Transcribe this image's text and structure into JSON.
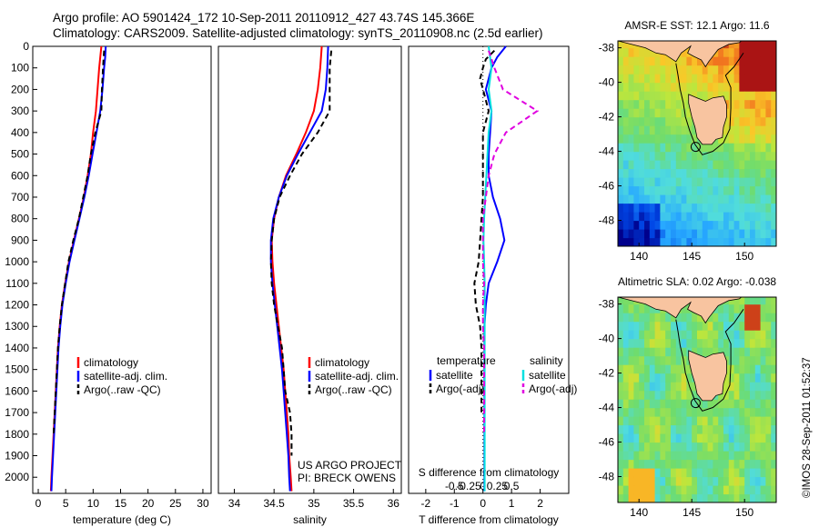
{
  "header": {
    "title_line1": "Argo profile: AO 5901424_172 10-Sep-2011 20110912_427 43.74S 145.366E",
    "title_line2": "Climatology: CARS2009. Satellite-adjusted climatology: synTS_20110908.nc (2.5d earlier)"
  },
  "side_stamp": "©IMOS 28-Sep-2011 01:52:37",
  "colors": {
    "climatology": "#ff0000",
    "satellite": "#0000ff",
    "argo": "#000000",
    "s_satellite": "#00e0e0",
    "s_argo": "#e000e0",
    "land": "#f8c4a0"
  },
  "chart_data": [
    {
      "type": "line",
      "id": "temperature",
      "xlabel": "temperature (deg C)",
      "xlim": [
        -1,
        31.5
      ],
      "ylim": [
        0,
        2075
      ],
      "y_reversed": true,
      "xticks": [
        0,
        5,
        10,
        15,
        20,
        25,
        30
      ],
      "yticks": [
        0,
        100,
        200,
        300,
        400,
        500,
        600,
        700,
        800,
        900,
        1000,
        1100,
        1200,
        1300,
        1400,
        1500,
        1600,
        1700,
        1800,
        1900,
        2000
      ],
      "legend": {
        "placement": "bottom-left",
        "entries": [
          "climatology",
          "satellite-adj. clim.",
          "Argo(..raw -QC)"
        ]
      },
      "series": [
        {
          "name": "climatology",
          "color": "#ff0000",
          "dash": false,
          "points": [
            [
              11.5,
              0
            ],
            [
              11.3,
              50
            ],
            [
              11.1,
              100
            ],
            [
              10.8,
              200
            ],
            [
              10.5,
              300
            ],
            [
              10.0,
              400
            ],
            [
              9.6,
              500
            ],
            [
              9.0,
              600
            ],
            [
              8.3,
              700
            ],
            [
              7.4,
              800
            ],
            [
              6.5,
              900
            ],
            [
              5.6,
              1000
            ],
            [
              4.9,
              1100
            ],
            [
              4.3,
              1200
            ],
            [
              3.9,
              1300
            ],
            [
              3.6,
              1400
            ],
            [
              3.4,
              1500
            ],
            [
              3.2,
              1600
            ],
            [
              3.0,
              1700
            ],
            [
              2.8,
              1800
            ],
            [
              2.6,
              1900
            ],
            [
              2.4,
              2000
            ],
            [
              2.3,
              2065
            ]
          ]
        },
        {
          "name": "satellite-adj. clim.",
          "color": "#0000ff",
          "dash": false,
          "points": [
            [
              12.3,
              0
            ],
            [
              12.2,
              50
            ],
            [
              12.0,
              100
            ],
            [
              11.7,
              200
            ],
            [
              11.3,
              300
            ],
            [
              10.6,
              400
            ],
            [
              9.9,
              500
            ],
            [
              9.2,
              600
            ],
            [
              8.4,
              700
            ],
            [
              7.5,
              800
            ],
            [
              6.6,
              900
            ],
            [
              5.7,
              1000
            ],
            [
              5.0,
              1100
            ],
            [
              4.4,
              1200
            ],
            [
              4.0,
              1300
            ],
            [
              3.7,
              1400
            ],
            [
              3.5,
              1500
            ],
            [
              3.3,
              1600
            ],
            [
              3.1,
              1700
            ],
            [
              2.9,
              1800
            ],
            [
              2.7,
              1900
            ],
            [
              2.5,
              2000
            ],
            [
              2.4,
              2065
            ]
          ]
        },
        {
          "name": "Argo(..raw -QC)",
          "color": "#000000",
          "dash": true,
          "points": [
            [
              12.0,
              20
            ],
            [
              11.9,
              60
            ],
            [
              11.8,
              100
            ],
            [
              11.6,
              200
            ],
            [
              11.5,
              300
            ],
            [
              10.4,
              400
            ],
            [
              9.6,
              500
            ],
            [
              9.0,
              600
            ],
            [
              8.2,
              700
            ],
            [
              7.4,
              800
            ],
            [
              6.4,
              900
            ],
            [
              5.5,
              1000
            ],
            [
              4.9,
              1100
            ],
            [
              4.3,
              1200
            ],
            [
              3.9,
              1300
            ],
            [
              3.6,
              1400
            ],
            [
              3.4,
              1500
            ],
            [
              3.2,
              1600
            ],
            [
              3.0,
              1700
            ],
            [
              2.8,
              1800
            ]
          ]
        }
      ]
    },
    {
      "type": "line",
      "id": "salinity",
      "xlabel": "salinity",
      "xlim": [
        33.8,
        36.1
      ],
      "ylim": [
        0,
        2075
      ],
      "y_reversed": true,
      "xticks": [
        34,
        34.5,
        35,
        35.5,
        36
      ],
      "legend": {
        "placement": "bottom-right",
        "entries": [
          "climatology",
          "satellite-adj. clim.",
          "Argo(..raw -QC)"
        ]
      },
      "annotation": [
        "US ARGO PROJECT",
        "PI: BRECK OWENS"
      ],
      "series": [
        {
          "name": "climatology",
          "color": "#ff0000",
          "dash": false,
          "points": [
            [
              35.1,
              0
            ],
            [
              35.08,
              100
            ],
            [
              35.05,
              200
            ],
            [
              35.0,
              300
            ],
            [
              34.9,
              400
            ],
            [
              34.78,
              500
            ],
            [
              34.65,
              600
            ],
            [
              34.56,
              700
            ],
            [
              34.5,
              800
            ],
            [
              34.47,
              900
            ],
            [
              34.48,
              1000
            ],
            [
              34.5,
              1100
            ],
            [
              34.53,
              1200
            ],
            [
              34.56,
              1300
            ],
            [
              34.59,
              1400
            ],
            [
              34.62,
              1500
            ],
            [
              34.64,
              1600
            ],
            [
              34.66,
              1700
            ],
            [
              34.68,
              1800
            ],
            [
              34.69,
              1900
            ],
            [
              34.71,
              2000
            ],
            [
              34.72,
              2065
            ]
          ]
        },
        {
          "name": "satellite-adj. clim.",
          "color": "#0000ff",
          "dash": false,
          "points": [
            [
              35.18,
              0
            ],
            [
              35.17,
              100
            ],
            [
              35.15,
              200
            ],
            [
              35.1,
              300
            ],
            [
              34.95,
              400
            ],
            [
              34.8,
              500
            ],
            [
              34.66,
              600
            ],
            [
              34.56,
              700
            ],
            [
              34.49,
              800
            ],
            [
              34.46,
              900
            ],
            [
              34.46,
              1000
            ],
            [
              34.48,
              1100
            ],
            [
              34.51,
              1200
            ],
            [
              34.54,
              1300
            ],
            [
              34.57,
              1400
            ],
            [
              34.6,
              1500
            ],
            [
              34.62,
              1600
            ],
            [
              34.64,
              1700
            ],
            [
              34.66,
              1800
            ],
            [
              34.68,
              1900
            ],
            [
              34.69,
              2000
            ],
            [
              34.7,
              2065
            ]
          ]
        },
        {
          "name": "Argo(..raw -QC)",
          "color": "#000000",
          "dash": true,
          "points": [
            [
              35.22,
              20
            ],
            [
              35.2,
              100
            ],
            [
              35.2,
              200
            ],
            [
              35.2,
              300
            ],
            [
              35.05,
              400
            ],
            [
              34.85,
              500
            ],
            [
              34.7,
              600
            ],
            [
              34.57,
              700
            ],
            [
              34.5,
              800
            ],
            [
              34.47,
              900
            ],
            [
              34.46,
              1000
            ],
            [
              34.47,
              1100
            ],
            [
              34.5,
              1200
            ],
            [
              34.55,
              1300
            ],
            [
              34.6,
              1400
            ],
            [
              34.62,
              1500
            ],
            [
              34.64,
              1600
            ],
            [
              34.7,
              1700
            ],
            [
              34.72,
              1800
            ],
            [
              34.72,
              1900
            ]
          ]
        }
      ]
    },
    {
      "type": "line",
      "id": "difference",
      "xlabel": "T difference from climatology",
      "xlabel_top": "S difference from climatology",
      "xlim": [
        -2.6,
        3.0
      ],
      "ylim": [
        0,
        2075
      ],
      "y_reversed": true,
      "xticks": [
        -2,
        -1,
        0,
        1,
        2
      ],
      "xticks_s": [
        -0.5,
        -0.25,
        0,
        0.25,
        0.5
      ],
      "legend": {
        "placement": "bottom",
        "headers": [
          "temperature",
          "salinity"
        ],
        "entries": [
          "satellite",
          "Argo(-adj)",
          "satellite",
          "Argo(-adj)"
        ]
      },
      "series": [
        {
          "name": "satellite",
          "group": "temperature",
          "color": "#0000ff",
          "dash": false,
          "points": [
            [
              0.8,
              0
            ],
            [
              0.5,
              50
            ],
            [
              0.3,
              100
            ],
            [
              0.1,
              200
            ],
            [
              0.3,
              300
            ],
            [
              0.25,
              400
            ],
            [
              0.2,
              500
            ],
            [
              0.2,
              600
            ],
            [
              0.35,
              700
            ],
            [
              0.6,
              800
            ],
            [
              0.75,
              900
            ],
            [
              0.5,
              1000
            ],
            [
              0.2,
              1100
            ],
            [
              0.1,
              1200
            ],
            [
              0.05,
              1300
            ],
            [
              0.05,
              1400
            ],
            [
              0.05,
              1500
            ],
            [
              0.05,
              1600
            ],
            [
              0.05,
              1700
            ],
            [
              0.05,
              1800
            ],
            [
              0.05,
              1900
            ],
            [
              0.05,
              2000
            ],
            [
              0.05,
              2065
            ]
          ]
        },
        {
          "name": "Argo(-adj)",
          "group": "temperature",
          "color": "#000000",
          "dash": true,
          "points": [
            [
              0.4,
              20
            ],
            [
              0.1,
              60
            ],
            [
              0.0,
              100
            ],
            [
              -0.1,
              150
            ],
            [
              0.2,
              300
            ],
            [
              0.0,
              400
            ],
            [
              0.0,
              500
            ],
            [
              0.0,
              600
            ],
            [
              0.0,
              700
            ],
            [
              -0.05,
              800
            ],
            [
              -0.1,
              900
            ],
            [
              -0.15,
              1000
            ],
            [
              -0.3,
              1100
            ],
            [
              -0.25,
              1200
            ],
            [
              -0.1,
              1300
            ],
            [
              -0.05,
              1400
            ],
            [
              -0.05,
              1500
            ],
            [
              -0.05,
              1600
            ],
            [
              -0.05,
              1700
            ]
          ]
        },
        {
          "name": "satellite",
          "group": "salinity",
          "color": "#00e0e0",
          "dash": false,
          "points": [
            [
              0.1,
              0
            ],
            [
              0.15,
              100
            ],
            [
              0.1,
              200
            ],
            [
              0.15,
              300
            ],
            [
              0.1,
              400
            ],
            [
              0.08,
              500
            ],
            [
              0.06,
              600
            ],
            [
              0.04,
              700
            ],
            [
              0.02,
              800
            ],
            [
              0.01,
              900
            ],
            [
              0.02,
              1000
            ],
            [
              0.03,
              1100
            ],
            [
              0.03,
              1200
            ],
            [
              0.03,
              1300
            ],
            [
              0.03,
              1400
            ],
            [
              0.03,
              1500
            ],
            [
              0.03,
              1600
            ],
            [
              0.03,
              1700
            ],
            [
              0.03,
              1800
            ],
            [
              0.03,
              1900
            ],
            [
              0.03,
              2000
            ],
            [
              0.03,
              2065
            ]
          ]
        },
        {
          "name": "Argo(-adj)",
          "group": "salinity",
          "color": "#e000e0",
          "dash": true,
          "points": [
            [
              0.1,
              20
            ],
            [
              0.2,
              100
            ],
            [
              0.35,
              200
            ],
            [
              0.95,
              300
            ],
            [
              0.4,
              400
            ],
            [
              0.2,
              500
            ],
            [
              0.1,
              600
            ],
            [
              0.05,
              700
            ],
            [
              0.0,
              800
            ],
            [
              0.0,
              900
            ],
            [
              0.0,
              1000
            ],
            [
              0.02,
              1100
            ],
            [
              0.0,
              1200
            ],
            [
              0.0,
              1300
            ],
            [
              0.02,
              1400
            ],
            [
              0.02,
              1500
            ],
            [
              0.02,
              1600
            ],
            [
              0.02,
              1700
            ],
            [
              0.02,
              1800
            ]
          ]
        }
      ]
    },
    {
      "type": "heatmap",
      "id": "sst_map",
      "title": "AMSR-E SST: 12.1 Argo: 11.6",
      "xlim": [
        138,
        153
      ],
      "ylim": [
        -49.5,
        -37.6
      ],
      "xticks": [
        140,
        145,
        150
      ],
      "yticks": [
        -38,
        -40,
        -42,
        -44,
        -46,
        -48
      ],
      "profile_location": [
        145.366,
        -43.74
      ]
    },
    {
      "type": "heatmap",
      "id": "sla_map",
      "title": "Altimetric SLA: 0.02 Argo: -0.038",
      "xlim": [
        138,
        153
      ],
      "ylim": [
        -49.5,
        -37.6
      ],
      "xticks": [
        140,
        145,
        150
      ],
      "yticks": [
        -38,
        -40,
        -42,
        -44,
        -46,
        -48
      ],
      "profile_location": [
        145.366,
        -43.74
      ]
    }
  ]
}
